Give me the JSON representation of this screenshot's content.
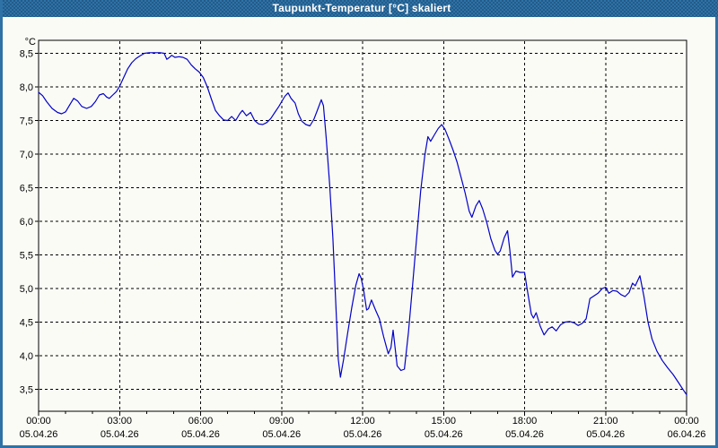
{
  "window": {
    "title": "Taupunkt-Temperatur [°C] skaliert"
  },
  "colors": {
    "header_bg": "#2E72A6",
    "frame_border": "#2E72A6",
    "background": "#FBFBF6",
    "grid": "#000000",
    "axis": "#000000",
    "label_text": "#000000",
    "title_text": "#FFFFFF",
    "line": "#0202C8"
  },
  "chart_data": {
    "type": "line",
    "title": "Taupunkt-Temperatur [°C] skaliert",
    "grid": "dashed",
    "legend": "none",
    "y_axis": {
      "unit": "°C",
      "min_value": 3.2,
      "max_value": 8.7,
      "ticks": [
        {
          "value": 8.5,
          "label": "8,5"
        },
        {
          "value": 8.0,
          "label": "8,0"
        },
        {
          "value": 7.5,
          "label": "7,5"
        },
        {
          "value": 7.0,
          "label": "7,0"
        },
        {
          "value": 6.5,
          "label": "6,5"
        },
        {
          "value": 6.0,
          "label": "6,0"
        },
        {
          "value": 5.5,
          "label": "5,5"
        },
        {
          "value": 5.0,
          "label": "5,0"
        },
        {
          "value": 4.5,
          "label": "4,5"
        },
        {
          "value": 4.0,
          "label": "4,0"
        },
        {
          "value": 3.5,
          "label": "3,5"
        }
      ]
    },
    "x_axis": {
      "range_hours": [
        0,
        24
      ],
      "minor_tick_every_hours": 1,
      "major_tick_every_hours": 3,
      "ticks": [
        {
          "hour": 0,
          "time": "00:00",
          "date": "05.04.26"
        },
        {
          "hour": 3,
          "time": "03:00",
          "date": "05.04.26"
        },
        {
          "hour": 6,
          "time": "06:00",
          "date": "05.04.26"
        },
        {
          "hour": 9,
          "time": "09:00",
          "date": "05.04.26"
        },
        {
          "hour": 12,
          "time": "12:00",
          "date": "05.04.26"
        },
        {
          "hour": 15,
          "time": "15:00",
          "date": "05.04.26"
        },
        {
          "hour": 18,
          "time": "18:00",
          "date": "05.04.26"
        },
        {
          "hour": 21,
          "time": "21:00",
          "date": "05.04.26"
        },
        {
          "hour": 24,
          "time": "00:00",
          "date": "06.04.26"
        }
      ]
    },
    "series": [
      {
        "name": "Taupunkt-Temperatur",
        "color": "#0202C8",
        "points": [
          [
            0.0,
            7.92
          ],
          [
            0.15,
            7.87
          ],
          [
            0.3,
            7.78
          ],
          [
            0.5,
            7.68
          ],
          [
            0.7,
            7.62
          ],
          [
            0.85,
            7.6
          ],
          [
            1.0,
            7.63
          ],
          [
            1.15,
            7.73
          ],
          [
            1.3,
            7.83
          ],
          [
            1.45,
            7.79
          ],
          [
            1.6,
            7.71
          ],
          [
            1.78,
            7.68
          ],
          [
            1.95,
            7.71
          ],
          [
            2.1,
            7.78
          ],
          [
            2.25,
            7.88
          ],
          [
            2.4,
            7.9
          ],
          [
            2.52,
            7.85
          ],
          [
            2.62,
            7.83
          ],
          [
            2.75,
            7.88
          ],
          [
            2.88,
            7.93
          ],
          [
            3.0,
            8.01
          ],
          [
            3.15,
            8.14
          ],
          [
            3.3,
            8.27
          ],
          [
            3.45,
            8.36
          ],
          [
            3.6,
            8.42
          ],
          [
            3.75,
            8.46
          ],
          [
            3.92,
            8.5
          ],
          [
            4.1,
            8.51
          ],
          [
            4.3,
            8.51
          ],
          [
            4.5,
            8.51
          ],
          [
            4.65,
            8.5
          ],
          [
            4.75,
            8.41
          ],
          [
            4.85,
            8.44
          ],
          [
            4.93,
            8.47
          ],
          [
            5.05,
            8.44
          ],
          [
            5.2,
            8.45
          ],
          [
            5.35,
            8.44
          ],
          [
            5.5,
            8.41
          ],
          [
            5.65,
            8.33
          ],
          [
            5.8,
            8.27
          ],
          [
            5.95,
            8.22
          ],
          [
            6.1,
            8.14
          ],
          [
            6.25,
            8.0
          ],
          [
            6.4,
            7.82
          ],
          [
            6.55,
            7.65
          ],
          [
            6.7,
            7.57
          ],
          [
            6.85,
            7.51
          ],
          [
            7.0,
            7.5
          ],
          [
            7.15,
            7.56
          ],
          [
            7.3,
            7.5
          ],
          [
            7.45,
            7.6
          ],
          [
            7.55,
            7.65
          ],
          [
            7.7,
            7.57
          ],
          [
            7.85,
            7.62
          ],
          [
            8.0,
            7.5
          ],
          [
            8.15,
            7.45
          ],
          [
            8.3,
            7.44
          ],
          [
            8.45,
            7.47
          ],
          [
            8.6,
            7.53
          ],
          [
            8.75,
            7.62
          ],
          [
            8.9,
            7.71
          ],
          [
            9.0,
            7.78
          ],
          [
            9.12,
            7.86
          ],
          [
            9.24,
            7.91
          ],
          [
            9.35,
            7.83
          ],
          [
            9.5,
            7.76
          ],
          [
            9.62,
            7.6
          ],
          [
            9.75,
            7.49
          ],
          [
            9.9,
            7.44
          ],
          [
            10.05,
            7.42
          ],
          [
            10.2,
            7.52
          ],
          [
            10.35,
            7.68
          ],
          [
            10.47,
            7.81
          ],
          [
            10.55,
            7.72
          ],
          [
            10.65,
            7.25
          ],
          [
            10.78,
            6.55
          ],
          [
            10.9,
            5.75
          ],
          [
            11.0,
            4.85
          ],
          [
            11.1,
            3.95
          ],
          [
            11.18,
            3.68
          ],
          [
            11.3,
            3.95
          ],
          [
            11.45,
            4.35
          ],
          [
            11.6,
            4.72
          ],
          [
            11.75,
            5.05
          ],
          [
            11.87,
            5.22
          ],
          [
            11.95,
            5.15
          ],
          [
            12.05,
            4.95
          ],
          [
            12.15,
            4.68
          ],
          [
            12.22,
            4.7
          ],
          [
            12.33,
            4.83
          ],
          [
            12.48,
            4.68
          ],
          [
            12.62,
            4.55
          ],
          [
            12.78,
            4.28
          ],
          [
            12.95,
            4.03
          ],
          [
            13.05,
            4.12
          ],
          [
            13.13,
            4.38
          ],
          [
            13.28,
            3.85
          ],
          [
            13.42,
            3.78
          ],
          [
            13.55,
            3.8
          ],
          [
            13.7,
            4.35
          ],
          [
            13.85,
            5.05
          ],
          [
            14.0,
            5.75
          ],
          [
            14.15,
            6.45
          ],
          [
            14.3,
            6.97
          ],
          [
            14.42,
            7.26
          ],
          [
            14.52,
            7.19
          ],
          [
            14.65,
            7.28
          ],
          [
            14.8,
            7.38
          ],
          [
            14.93,
            7.44
          ],
          [
            15.05,
            7.37
          ],
          [
            15.2,
            7.22
          ],
          [
            15.35,
            7.06
          ],
          [
            15.5,
            6.88
          ],
          [
            15.65,
            6.65
          ],
          [
            15.8,
            6.42
          ],
          [
            15.95,
            6.15
          ],
          [
            16.05,
            6.06
          ],
          [
            16.2,
            6.23
          ],
          [
            16.32,
            6.31
          ],
          [
            16.45,
            6.18
          ],
          [
            16.6,
            5.98
          ],
          [
            16.75,
            5.74
          ],
          [
            16.9,
            5.57
          ],
          [
            17.0,
            5.51
          ],
          [
            17.1,
            5.56
          ],
          [
            17.25,
            5.76
          ],
          [
            17.37,
            5.86
          ],
          [
            17.45,
            5.58
          ],
          [
            17.55,
            5.17
          ],
          [
            17.68,
            5.26
          ],
          [
            17.83,
            5.24
          ],
          [
            18.0,
            5.24
          ],
          [
            18.1,
            4.98
          ],
          [
            18.25,
            4.62
          ],
          [
            18.33,
            4.56
          ],
          [
            18.43,
            4.64
          ],
          [
            18.58,
            4.44
          ],
          [
            18.72,
            4.31
          ],
          [
            18.88,
            4.4
          ],
          [
            19.02,
            4.43
          ],
          [
            19.17,
            4.37
          ],
          [
            19.33,
            4.46
          ],
          [
            19.5,
            4.5
          ],
          [
            19.67,
            4.51
          ],
          [
            19.83,
            4.49
          ],
          [
            19.98,
            4.45
          ],
          [
            20.13,
            4.48
          ],
          [
            20.28,
            4.55
          ],
          [
            20.42,
            4.85
          ],
          [
            20.57,
            4.89
          ],
          [
            20.72,
            4.93
          ],
          [
            20.88,
            5.0
          ],
          [
            21.0,
            5.02
          ],
          [
            21.12,
            4.93
          ],
          [
            21.27,
            4.97
          ],
          [
            21.42,
            4.96
          ],
          [
            21.57,
            4.91
          ],
          [
            21.72,
            4.88
          ],
          [
            21.87,
            4.94
          ],
          [
            22.0,
            5.08
          ],
          [
            22.1,
            5.04
          ],
          [
            22.27,
            5.19
          ],
          [
            22.42,
            4.88
          ],
          [
            22.57,
            4.5
          ],
          [
            22.72,
            4.25
          ],
          [
            22.9,
            4.07
          ],
          [
            23.1,
            3.93
          ],
          [
            23.3,
            3.82
          ],
          [
            23.5,
            3.72
          ],
          [
            23.7,
            3.6
          ],
          [
            23.88,
            3.49
          ],
          [
            24.0,
            3.42
          ]
        ]
      }
    ]
  }
}
